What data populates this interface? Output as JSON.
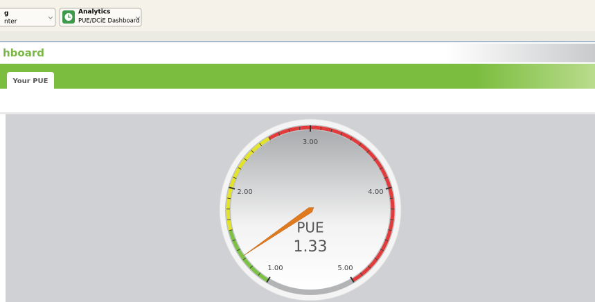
{
  "toolbar": {
    "items": [
      {
        "title": "g",
        "subtitle": "nter"
      },
      {
        "title": "Analytics",
        "subtitle": "PUE/DCiE Dashboard"
      }
    ]
  },
  "header": {
    "title": "hboard"
  },
  "tabs": [
    "Your PUE"
  ],
  "gauge": {
    "label": "PUE",
    "value": 1.33,
    "min": 1,
    "max": 5,
    "ticks": [
      {
        "value": 1,
        "label": "1.00"
      },
      {
        "value": 2,
        "label": "2.00"
      },
      {
        "value": 3,
        "label": "3.00"
      },
      {
        "value": 4,
        "label": "4.00"
      },
      {
        "value": 5,
        "label": "5.00"
      }
    ],
    "bands": [
      {
        "from": 1,
        "to": 1.6,
        "color": "#7cc242"
      },
      {
        "from": 1.6,
        "to": 2.6,
        "color": "#e3e32a"
      },
      {
        "from": 2.6,
        "to": 5,
        "color": "#e23b3b"
      }
    ],
    "needle_color": "#e07a1f"
  }
}
